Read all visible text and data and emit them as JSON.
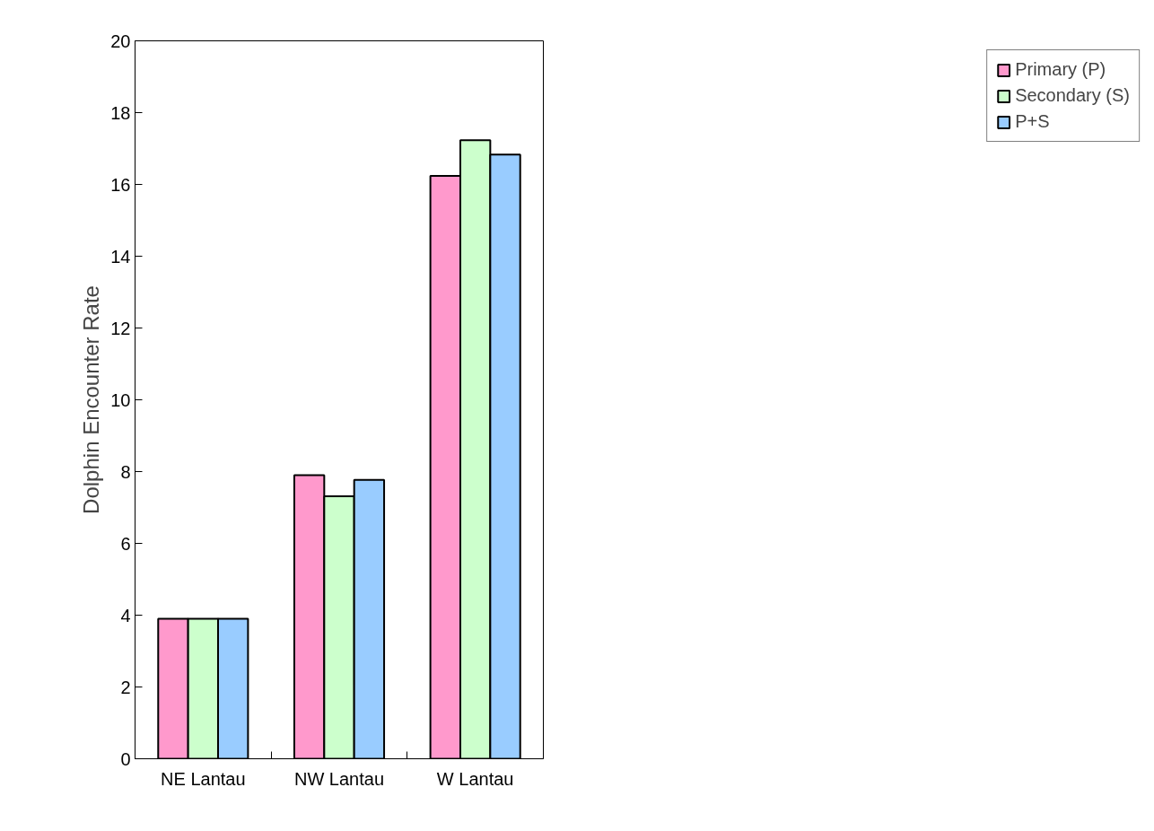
{
  "chart_data": {
    "type": "bar",
    "ylabel": "Dolphin Encounter Rate",
    "categories": [
      "NE Lantau",
      "NW Lantau",
      "W Lantau"
    ],
    "series": [
      {
        "name": "Primary (P)",
        "color": "#ff99cc",
        "values": [
          3.9,
          7.9,
          16.24
        ]
      },
      {
        "name": "Secondary (S)",
        "color": "#ccffcc",
        "values": [
          3.9,
          7.31,
          17.23
        ]
      },
      {
        "name": "P+S",
        "color": "#99ccff",
        "values": [
          3.9,
          7.77,
          16.83
        ]
      }
    ],
    "ylim": [
      0,
      20
    ],
    "yticks": [
      0,
      2,
      4,
      6,
      8,
      10,
      12,
      14,
      16,
      18,
      20
    ],
    "grid": false,
    "legend": "right"
  }
}
